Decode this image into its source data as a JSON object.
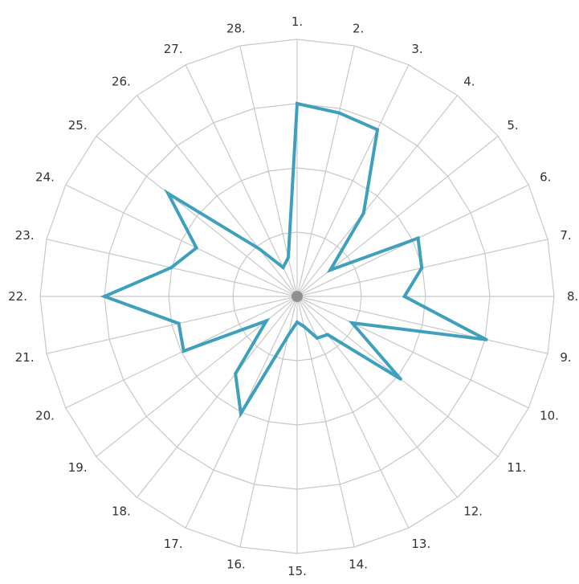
{
  "chart_data": {
    "type": "radar",
    "categories": [
      "1.",
      "2.",
      "3.",
      "4.",
      "5.",
      "6.",
      "7.",
      "8.",
      "9.",
      "10.",
      "11.",
      "12.",
      "13.",
      "14.",
      "15.",
      "16.",
      "17.",
      "18.",
      "19.",
      "20.",
      "21.",
      "22.",
      "23.",
      "24.",
      "25.",
      "26.",
      "27.",
      "28."
    ],
    "values": [
      3.0,
      2.93,
      2.88,
      1.66,
      0.66,
      2.09,
      1.99,
      1.67,
      3.02,
      0.95,
      2.06,
      0.76,
      0.72,
      0.48,
      0.4,
      0.62,
      2.02,
      1.54,
      0.61,
      1.96,
      1.89,
      3.0,
      2.01,
      1.74,
      2.57,
      0.95,
      0.5,
      0.62
    ],
    "rlim": [
      0,
      4
    ],
    "grid": true,
    "colors": {
      "series": "#3ea0bd",
      "grid": "#c8c8c8",
      "center": "#777777"
    },
    "title": "",
    "xlabel": "",
    "ylabel": ""
  }
}
